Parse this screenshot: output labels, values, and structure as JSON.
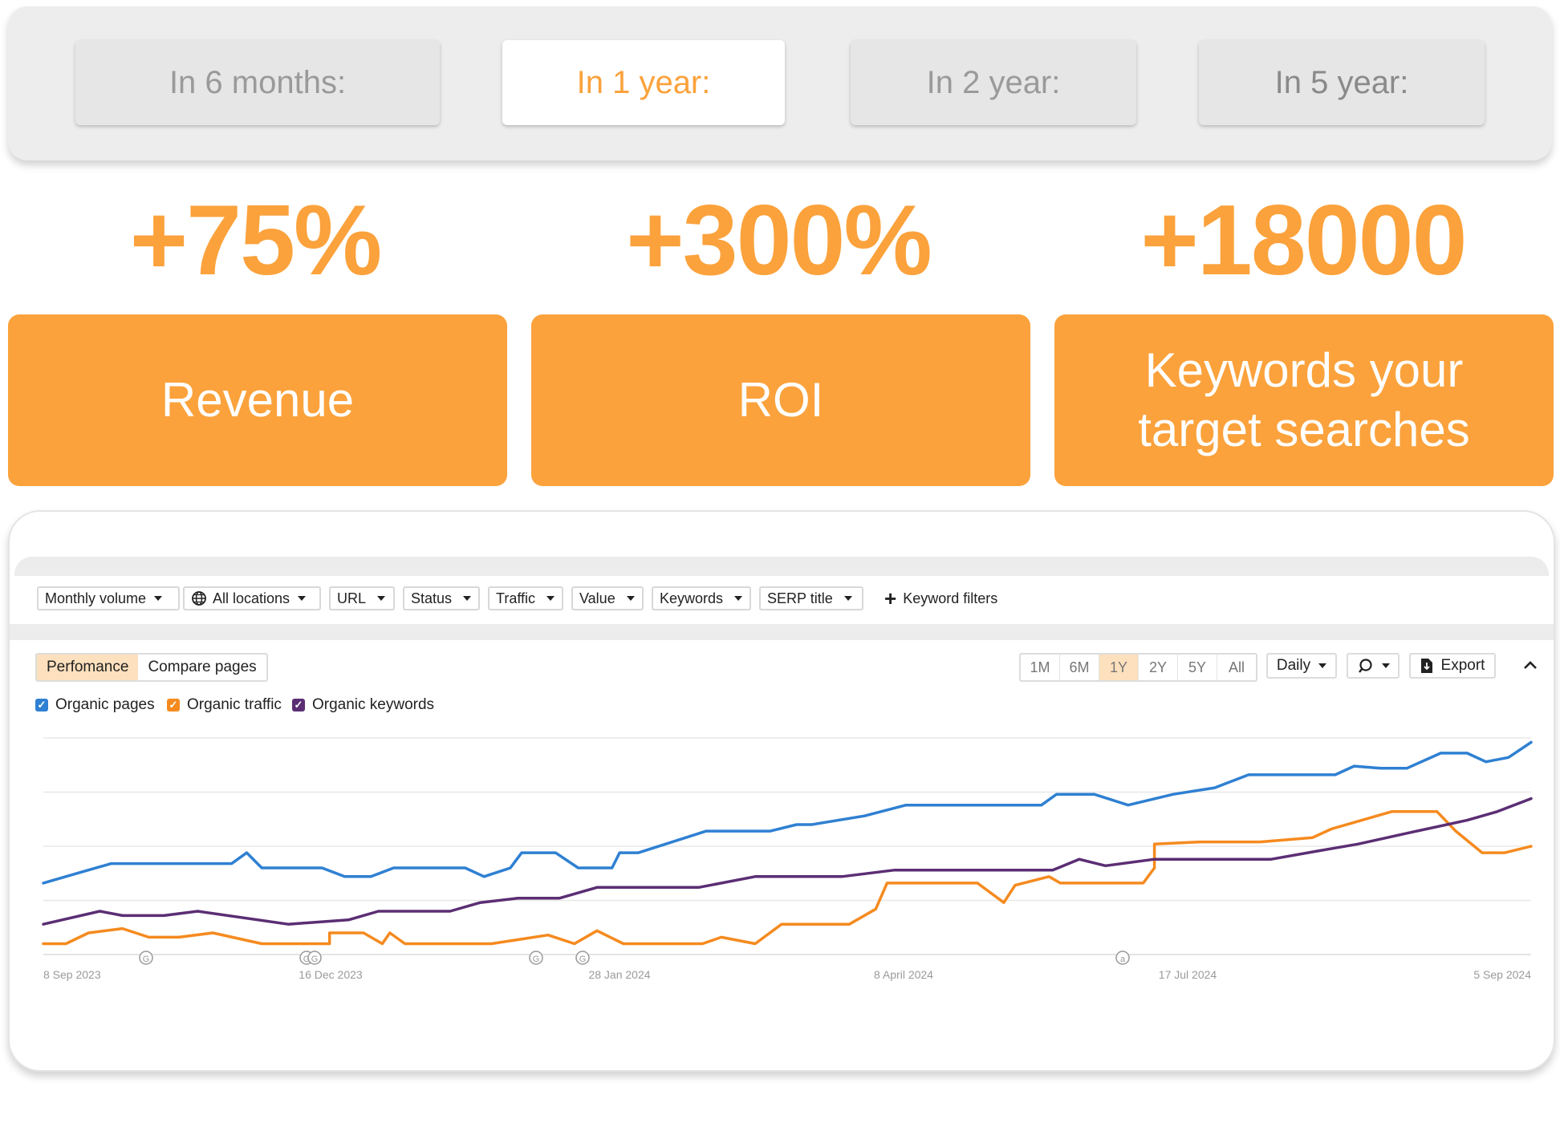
{
  "period_tabs": [
    {
      "label": "In 6 months:",
      "state": "inactive"
    },
    {
      "label": "In 1 year:",
      "state": "active"
    },
    {
      "label": "In 2 year:",
      "state": "inactive"
    },
    {
      "label": "In 5 year:",
      "state": "inactive"
    }
  ],
  "stats": [
    {
      "value": "+75%",
      "label": "Revenue"
    },
    {
      "value": "+300%",
      "label": "ROI"
    },
    {
      "value": "+18000",
      "label": "Keywords your target searches"
    }
  ],
  "colors": {
    "accent": "#fba23c",
    "organic_pages": "#2f80d2",
    "organic_traffic": "#f58a1f",
    "organic_keywords": "#5b2e74"
  },
  "filters": [
    {
      "label": "Monthly volume",
      "icon": ""
    },
    {
      "label": "All locations",
      "icon": "globe-icon"
    },
    {
      "label": "URL",
      "icon": ""
    },
    {
      "label": "Status",
      "icon": ""
    },
    {
      "label": "Traffic",
      "icon": ""
    },
    {
      "label": "Value",
      "icon": ""
    },
    {
      "label": "Keywords",
      "icon": ""
    },
    {
      "label": "SERP title",
      "icon": ""
    }
  ],
  "keyword_filters_label": "Keyword filters",
  "view_tabs": {
    "performance": "Perfomance",
    "compare": "Compare pages",
    "active": "performance"
  },
  "ranges": {
    "options": [
      "1M",
      "6M",
      "1Y",
      "2Y",
      "5Y",
      "All"
    ],
    "selected": "1Y"
  },
  "interval": "Daily",
  "export_label": "Export",
  "legend": [
    {
      "label": "Organic pages",
      "checked": true
    },
    {
      "label": "Organic traffic",
      "checked": true
    },
    {
      "label": "Organic keywords",
      "checked": true
    }
  ],
  "chart_data": {
    "type": "line",
    "x": [
      "8 Sep 2023",
      "16 Dec 2023",
      "28 Jan 2024",
      "8 April 2024",
      "17 Jul 2024",
      "5 Sep 2024"
    ],
    "x_tick_labels": [
      "8 Sep 2023",
      "16 Dec 2023",
      "28 Jan 2024",
      "8 April 2024",
      "17 Jul 2024",
      "5 Sep 2024"
    ],
    "y_axis_labels": "none shown",
    "grid": true,
    "series": [
      {
        "name": "Organic pages",
        "color": "#2f80d2",
        "points": [
          [
            "2023-09-08",
            0.33
          ],
          [
            "2023-09-16",
            0.37
          ],
          [
            "2023-09-26",
            0.42
          ],
          [
            "2023-10-28",
            0.42
          ],
          [
            "2023-11-01",
            0.47
          ],
          [
            "2023-11-05",
            0.4
          ],
          [
            "2023-11-21",
            0.4
          ],
          [
            "2023-11-27",
            0.36
          ],
          [
            "2023-12-04",
            0.36
          ],
          [
            "2023-12-10",
            0.4
          ],
          [
            "2023-12-29",
            0.4
          ],
          [
            "2024-01-03",
            0.36
          ],
          [
            "2024-01-10",
            0.4
          ],
          [
            "2024-01-13",
            0.47
          ],
          [
            "2024-01-22",
            0.47
          ],
          [
            "2024-01-28",
            0.4
          ],
          [
            "2024-02-06",
            0.4
          ],
          [
            "2024-02-08",
            0.47
          ],
          [
            "2024-02-13",
            0.47
          ],
          [
            "2024-03-02",
            0.57
          ],
          [
            "2024-03-19",
            0.57
          ],
          [
            "2024-03-26",
            0.6
          ],
          [
            "2024-03-30",
            0.6
          ],
          [
            "2024-04-13",
            0.64
          ],
          [
            "2024-04-24",
            0.69
          ],
          [
            "2024-05-30",
            0.69
          ],
          [
            "2024-06-03",
            0.74
          ],
          [
            "2024-06-13",
            0.74
          ],
          [
            "2024-06-22",
            0.69
          ],
          [
            "2024-07-04",
            0.74
          ],
          [
            "2024-07-15",
            0.77
          ],
          [
            "2024-07-24",
            0.83
          ],
          [
            "2024-08-16",
            0.83
          ],
          [
            "2024-08-21",
            0.87
          ],
          [
            "2024-08-28",
            0.86
          ],
          [
            "2024-09-04",
            0.86
          ],
          [
            "2024-09-13",
            0.93
          ],
          [
            "2024-09-20",
            0.93
          ],
          [
            "2024-09-25",
            0.89
          ],
          [
            "2024-10-01",
            0.91
          ],
          [
            "2024-10-07",
            0.98
          ]
        ]
      },
      {
        "name": "Organic traffic",
        "color": "#f58a1f",
        "points": [
          [
            "2023-09-08",
            0.05
          ],
          [
            "2023-09-14",
            0.05
          ],
          [
            "2023-09-20",
            0.1
          ],
          [
            "2023-09-29",
            0.12
          ],
          [
            "2023-10-06",
            0.08
          ],
          [
            "2023-10-14",
            0.08
          ],
          [
            "2023-10-23",
            0.1
          ],
          [
            "2023-11-05",
            0.05
          ],
          [
            "2023-11-23",
            0.05
          ],
          [
            "2023-11-23",
            0.1
          ],
          [
            "2023-12-02",
            0.1
          ],
          [
            "2023-12-07",
            0.05
          ],
          [
            "2023-12-09",
            0.1
          ],
          [
            "2023-12-13",
            0.05
          ],
          [
            "2024-01-05",
            0.05
          ],
          [
            "2024-01-20",
            0.09
          ],
          [
            "2024-01-27",
            0.05
          ],
          [
            "2024-02-02",
            0.11
          ],
          [
            "2024-02-09",
            0.05
          ],
          [
            "2024-03-01",
            0.05
          ],
          [
            "2024-03-06",
            0.08
          ],
          [
            "2024-03-15",
            0.05
          ],
          [
            "2024-03-22",
            0.14
          ],
          [
            "2024-04-09",
            0.14
          ],
          [
            "2024-04-16",
            0.21
          ],
          [
            "2024-04-19",
            0.33
          ],
          [
            "2024-05-13",
            0.33
          ],
          [
            "2024-05-20",
            0.24
          ],
          [
            "2024-05-23",
            0.32
          ],
          [
            "2024-06-01",
            0.36
          ],
          [
            "2024-06-04",
            0.33
          ],
          [
            "2024-06-26",
            0.33
          ],
          [
            "2024-06-29",
            0.4
          ],
          [
            "2024-06-29",
            0.51
          ],
          [
            "2024-07-11",
            0.52
          ],
          [
            "2024-07-27",
            0.52
          ],
          [
            "2024-08-10",
            0.54
          ],
          [
            "2024-08-15",
            0.58
          ],
          [
            "2024-08-31",
            0.66
          ],
          [
            "2024-09-12",
            0.66
          ],
          [
            "2024-09-17",
            0.57
          ],
          [
            "2024-09-24",
            0.47
          ],
          [
            "2024-09-30",
            0.47
          ],
          [
            "2024-10-07",
            0.5
          ]
        ]
      },
      {
        "name": "Organic keywords",
        "color": "#5b2e74",
        "points": [
          [
            "2023-09-08",
            0.14
          ],
          [
            "2023-09-23",
            0.2
          ],
          [
            "2023-09-29",
            0.18
          ],
          [
            "2023-10-10",
            0.18
          ],
          [
            "2023-10-19",
            0.2
          ],
          [
            "2023-11-12",
            0.14
          ],
          [
            "2023-11-28",
            0.16
          ],
          [
            "2023-12-06",
            0.2
          ],
          [
            "2023-12-25",
            0.2
          ],
          [
            "2024-01-02",
            0.24
          ],
          [
            "2024-01-12",
            0.26
          ],
          [
            "2024-01-23",
            0.26
          ],
          [
            "2024-02-02",
            0.31
          ],
          [
            "2024-02-29",
            0.31
          ],
          [
            "2024-03-15",
            0.36
          ],
          [
            "2024-04-07",
            0.36
          ],
          [
            "2024-04-21",
            0.39
          ],
          [
            "2024-05-11",
            0.39
          ],
          [
            "2024-06-02",
            0.39
          ],
          [
            "2024-06-09",
            0.44
          ],
          [
            "2024-06-16",
            0.41
          ],
          [
            "2024-06-29",
            0.44
          ],
          [
            "2024-07-30",
            0.44
          ],
          [
            "2024-08-12",
            0.48
          ],
          [
            "2024-08-22",
            0.51
          ],
          [
            "2024-09-04",
            0.56
          ],
          [
            "2024-09-20",
            0.62
          ],
          [
            "2024-09-28",
            0.66
          ],
          [
            "2024-10-07",
            0.72
          ]
        ]
      }
    ]
  }
}
